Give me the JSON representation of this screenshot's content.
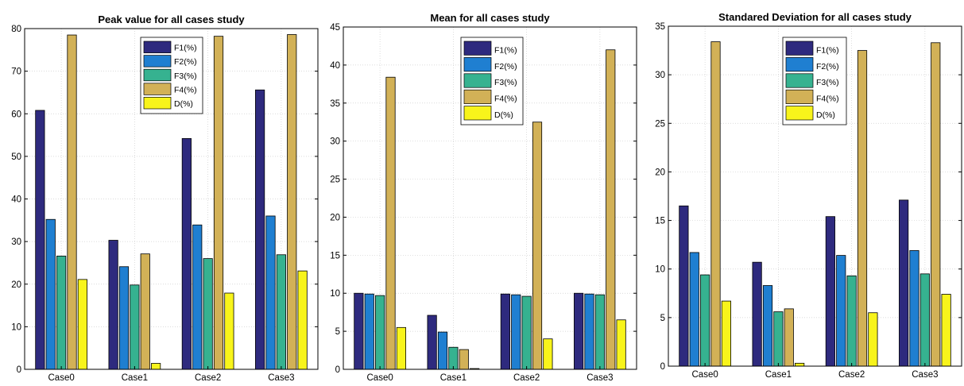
{
  "chart_data": [
    {
      "type": "bar",
      "title": "Peak value for all cases study",
      "categories": [
        "Case0",
        "Case1",
        "Case2",
        "Case3"
      ],
      "ylim": [
        0,
        80
      ],
      "yticks": [
        0,
        10,
        20,
        30,
        40,
        50,
        60,
        70,
        80
      ],
      "grid": true,
      "legend_position": "top-center",
      "series": [
        {
          "name": "F1(%)",
          "values": [
            60.8,
            30.3,
            54.2,
            65.6
          ]
        },
        {
          "name": "F2(%)",
          "values": [
            35.2,
            24.1,
            33.9,
            36.0
          ]
        },
        {
          "name": "F3(%)",
          "values": [
            26.6,
            19.8,
            26.0,
            26.9
          ]
        },
        {
          "name": "F4(%)",
          "values": [
            78.5,
            27.1,
            78.2,
            78.6
          ]
        },
        {
          "name": "D(%)",
          "values": [
            21.1,
            1.4,
            17.9,
            23.1
          ]
        }
      ]
    },
    {
      "type": "bar",
      "title": "Mean for all cases study",
      "categories": [
        "Case0",
        "Case1",
        "Case2",
        "Case3"
      ],
      "ylim": [
        0,
        45
      ],
      "yticks": [
        0,
        5,
        10,
        15,
        20,
        25,
        30,
        35,
        40,
        45
      ],
      "grid": true,
      "legend_position": "top-center",
      "series": [
        {
          "name": "F1(%)",
          "values": [
            10.0,
            7.1,
            9.9,
            10.0
          ]
        },
        {
          "name": "F2(%)",
          "values": [
            9.9,
            4.9,
            9.8,
            9.9
          ]
        },
        {
          "name": "F3(%)",
          "values": [
            9.7,
            2.9,
            9.6,
            9.8
          ]
        },
        {
          "name": "F4(%)",
          "values": [
            38.4,
            2.6,
            32.5,
            42.0
          ]
        },
        {
          "name": "D(%)",
          "values": [
            5.5,
            0.1,
            4.0,
            6.5
          ]
        }
      ]
    },
    {
      "type": "bar",
      "title": "Standared Deviation for all cases study",
      "categories": [
        "Case0",
        "Case1",
        "Case2",
        "Case3"
      ],
      "ylim": [
        0,
        35
      ],
      "yticks": [
        0,
        5,
        10,
        15,
        20,
        25,
        30,
        35
      ],
      "grid": true,
      "legend_position": "top-center",
      "series": [
        {
          "name": "F1(%)",
          "values": [
            16.5,
            10.7,
            15.4,
            17.1
          ]
        },
        {
          "name": "F2(%)",
          "values": [
            11.7,
            8.3,
            11.4,
            11.9
          ]
        },
        {
          "name": "F3(%)",
          "values": [
            9.4,
            5.6,
            9.3,
            9.5
          ]
        },
        {
          "name": "F4(%)",
          "values": [
            33.4,
            5.9,
            32.5,
            33.3
          ]
        },
        {
          "name": "D(%)",
          "values": [
            6.7,
            0.3,
            5.5,
            7.4
          ]
        }
      ]
    }
  ],
  "colors": {
    "F1(%)": "#2e2a7e",
    "F2(%)": "#1f7fd1",
    "F3(%)": "#36b290",
    "F4(%)": "#d2b157",
    "D(%)": "#f8f41b",
    "grid": "#cfcfcf",
    "axis": "#000000"
  }
}
